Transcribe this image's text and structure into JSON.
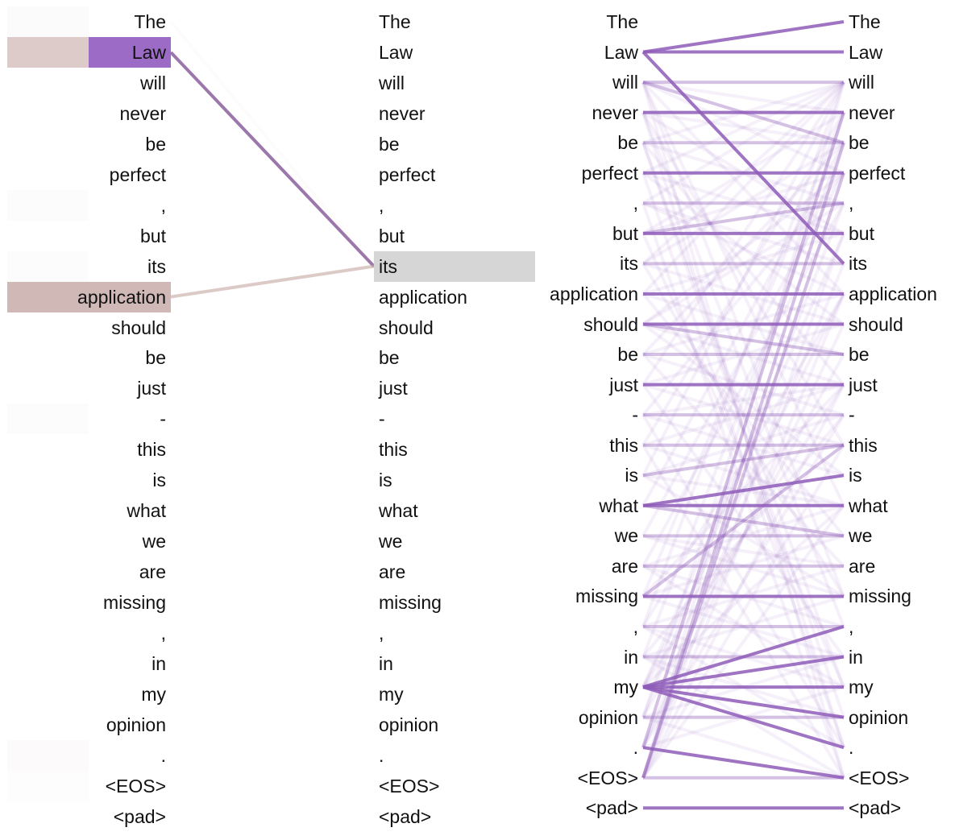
{
  "tokens": [
    "The",
    "Law",
    "will",
    "never",
    "be",
    "perfect",
    ",",
    "but",
    "its",
    "application",
    "should",
    "be",
    "just",
    "-",
    "this",
    "is",
    "what",
    "we",
    "are",
    "missing",
    ",",
    "in",
    "my",
    "opinion",
    ".",
    "<EOS>",
    "<pad>"
  ],
  "colors": {
    "purple": "#9b6bc6",
    "line_purple": "#8e5cb8",
    "mauve": "#bfa09c",
    "mauve_line": "#c4a6a2",
    "query_grey": "#d6d6d6",
    "text": "#111111"
  },
  "panel1": {
    "query_index": 8,
    "attention": [
      {
        "source": 1,
        "weight": 0.85,
        "color": "#8b5f9e"
      },
      {
        "source": 9,
        "weight": 0.6,
        "color": "#c4a6a2"
      },
      {
        "source": 0,
        "weight": 0.04,
        "color": "#c4a6a2"
      }
    ],
    "highlights": [
      {
        "index": 1,
        "left_shade": 0.55,
        "right_shade": 1.0,
        "right_color": "#9b6bc6"
      },
      {
        "index": 9,
        "left_shade": 0.75,
        "right_shade": 0.75,
        "right_color": "#bfa09c"
      },
      {
        "index": 0,
        "left_shade": 0.04,
        "right_shade": 0.0,
        "right_color": "#bfa09c"
      },
      {
        "index": 6,
        "left_shade": 0.03,
        "right_shade": 0.0,
        "right_color": "#bfa09c"
      },
      {
        "index": 8,
        "left_shade": 0.03,
        "right_shade": 0.0,
        "right_color": "#bfa09c"
      },
      {
        "index": 13,
        "left_shade": 0.03,
        "right_shade": 0.0,
        "right_color": "#bfa09c"
      },
      {
        "index": 24,
        "left_shade": 0.05,
        "right_shade": 0.0,
        "right_color": "#bfa09c"
      },
      {
        "index": 25,
        "left_shade": 0.02,
        "right_shade": 0.0,
        "right_color": "#bfa09c"
      }
    ]
  },
  "panel2": {
    "strong_links": [
      [
        1,
        0
      ],
      [
        1,
        1
      ],
      [
        1,
        8
      ],
      [
        3,
        3
      ],
      [
        5,
        5
      ],
      [
        7,
        7
      ],
      [
        9,
        9
      ],
      [
        10,
        10
      ],
      [
        12,
        12
      ],
      [
        16,
        15
      ],
      [
        16,
        16
      ],
      [
        19,
        19
      ],
      [
        22,
        20
      ],
      [
        22,
        21
      ],
      [
        22,
        22
      ],
      [
        22,
        23
      ],
      [
        22,
        24
      ],
      [
        24,
        25
      ],
      [
        26,
        26
      ]
    ],
    "medium_links": [
      [
        2,
        2
      ],
      [
        2,
        4
      ],
      [
        4,
        4
      ],
      [
        6,
        6
      ],
      [
        7,
        6
      ],
      [
        8,
        8
      ],
      [
        10,
        11
      ],
      [
        11,
        11
      ],
      [
        13,
        13
      ],
      [
        14,
        14
      ],
      [
        15,
        14
      ],
      [
        16,
        17
      ],
      [
        17,
        17
      ],
      [
        18,
        18
      ],
      [
        19,
        14
      ],
      [
        20,
        20
      ],
      [
        21,
        21
      ],
      [
        23,
        23
      ],
      [
        25,
        25
      ],
      [
        25,
        5
      ],
      [
        25,
        4
      ],
      [
        24,
        3
      ]
    ],
    "faint_links": [
      [
        2,
        3
      ],
      [
        2,
        5
      ],
      [
        2,
        9
      ],
      [
        3,
        4
      ],
      [
        3,
        7
      ],
      [
        4,
        2
      ],
      [
        4,
        6
      ],
      [
        5,
        7
      ],
      [
        5,
        2
      ],
      [
        6,
        2
      ],
      [
        7,
        5
      ],
      [
        7,
        3
      ],
      [
        8,
        2
      ],
      [
        8,
        10
      ],
      [
        9,
        11
      ],
      [
        9,
        7
      ],
      [
        10,
        12
      ],
      [
        11,
        9
      ],
      [
        11,
        13
      ],
      [
        12,
        10
      ],
      [
        12,
        14
      ],
      [
        13,
        12
      ],
      [
        13,
        15
      ],
      [
        14,
        16
      ],
      [
        14,
        12
      ],
      [
        15,
        16
      ],
      [
        15,
        13
      ],
      [
        17,
        18
      ],
      [
        17,
        19
      ],
      [
        18,
        16
      ],
      [
        18,
        20
      ],
      [
        19,
        21
      ],
      [
        19,
        17
      ],
      [
        20,
        22
      ],
      [
        20,
        18
      ],
      [
        21,
        23
      ],
      [
        21,
        19
      ],
      [
        22,
        9
      ],
      [
        22,
        12
      ],
      [
        23,
        21
      ],
      [
        23,
        25
      ],
      [
        24,
        22
      ],
      [
        24,
        13
      ],
      [
        24,
        10
      ],
      [
        25,
        7
      ],
      [
        25,
        9
      ],
      [
        25,
        14
      ],
      [
        25,
        2
      ],
      [
        25,
        12
      ],
      [
        23,
        6
      ],
      [
        23,
        3
      ],
      [
        22,
        16
      ],
      [
        21,
        4
      ],
      [
        20,
        2
      ],
      [
        19,
        3
      ],
      [
        18,
        6
      ],
      [
        17,
        5
      ],
      [
        16,
        4
      ],
      [
        15,
        2
      ],
      [
        14,
        3
      ],
      [
        13,
        5
      ],
      [
        12,
        2
      ],
      [
        11,
        4
      ],
      [
        10,
        6
      ],
      [
        9,
        2
      ],
      [
        8,
        4
      ],
      [
        6,
        9
      ],
      [
        5,
        10
      ],
      [
        4,
        12
      ],
      [
        3,
        14
      ],
      [
        2,
        16
      ],
      [
        2,
        19
      ],
      [
        3,
        20
      ],
      [
        4,
        22
      ],
      [
        5,
        24
      ],
      [
        6,
        25
      ],
      [
        7,
        22
      ],
      [
        8,
        19
      ],
      [
        9,
        17
      ],
      [
        10,
        15
      ],
      [
        11,
        18
      ],
      [
        12,
        21
      ],
      [
        13,
        24
      ],
      [
        14,
        25
      ],
      [
        6,
        8
      ],
      [
        10,
        5
      ],
      [
        15,
        19
      ],
      [
        18,
        22
      ],
      [
        20,
        24
      ],
      [
        21,
        25
      ],
      [
        24,
        8
      ],
      [
        25,
        16
      ],
      [
        23,
        11
      ],
      [
        22,
        7
      ],
      [
        21,
        13
      ],
      [
        20,
        9
      ],
      [
        19,
        12
      ],
      [
        2,
        25
      ],
      [
        3,
        24
      ],
      [
        4,
        23
      ]
    ]
  }
}
